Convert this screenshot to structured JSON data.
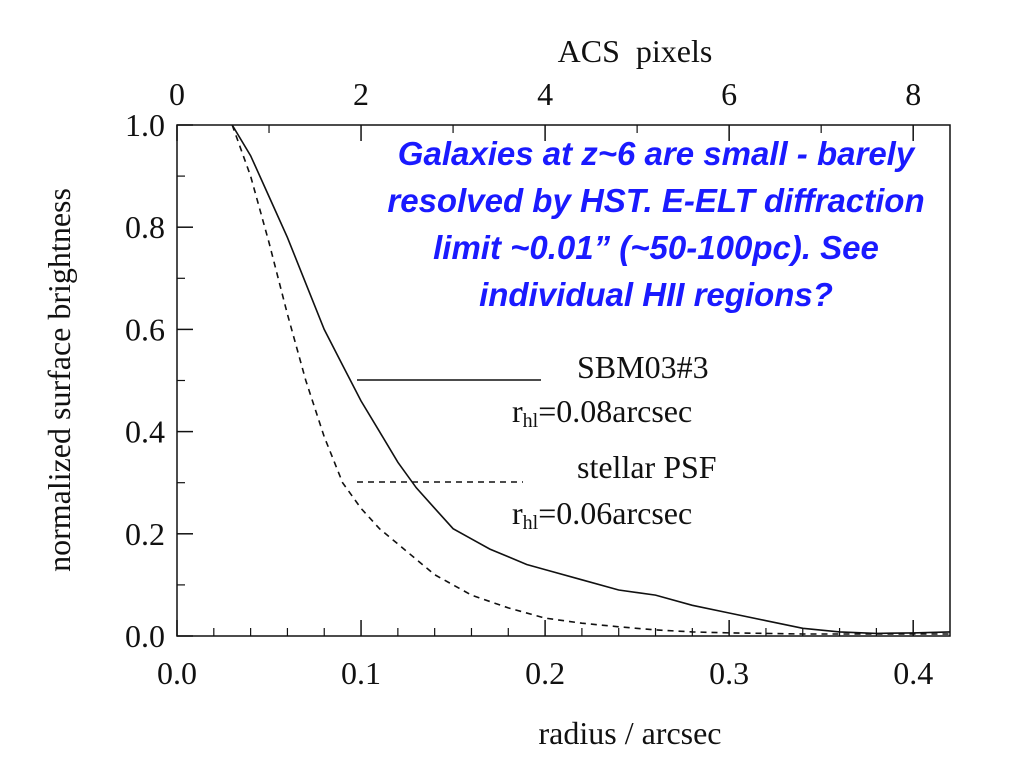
{
  "chart_data": {
    "type": "line",
    "xlabel": "radius / arcsec",
    "ylabel": "normalized surface brightness",
    "top_axis_label": "ACS  pixels",
    "xlim": [
      0.0,
      0.42
    ],
    "ylim": [
      0.0,
      1.0
    ],
    "x_ticks": [
      "0.0",
      "0.1",
      "0.2",
      "0.3",
      "0.4"
    ],
    "y_ticks": [
      "0.0",
      "0.2",
      "0.4",
      "0.6",
      "0.8",
      "1.0"
    ],
    "top_ticks": [
      "0",
      "2",
      "4",
      "6",
      "8"
    ],
    "grid": false,
    "legend_position": "center-right",
    "series": [
      {
        "name": "SBM03#3",
        "detail_prefix": "r",
        "detail_sub": "hl",
        "detail_suffix": "=0.08arcsec",
        "style": "solid",
        "x": [
          0.03,
          0.04,
          0.05,
          0.06,
          0.07,
          0.08,
          0.09,
          0.1,
          0.11,
          0.12,
          0.13,
          0.14,
          0.15,
          0.16,
          0.17,
          0.18,
          0.19,
          0.2,
          0.22,
          0.24,
          0.25,
          0.26,
          0.28,
          0.3,
          0.32,
          0.34,
          0.36,
          0.38,
          0.4,
          0.42
        ],
        "y": [
          1.0,
          0.94,
          0.86,
          0.78,
          0.69,
          0.6,
          0.53,
          0.46,
          0.4,
          0.34,
          0.29,
          0.25,
          0.21,
          0.19,
          0.17,
          0.155,
          0.14,
          0.13,
          0.11,
          0.09,
          0.085,
          0.08,
          0.06,
          0.045,
          0.03,
          0.015,
          0.008,
          0.005,
          0.006,
          0.008
        ]
      },
      {
        "name": "stellar PSF",
        "detail_prefix": "r",
        "detail_sub": "hl",
        "detail_suffix": "=0.06arcsec",
        "style": "dashed",
        "x": [
          0.03,
          0.04,
          0.05,
          0.06,
          0.07,
          0.08,
          0.09,
          0.1,
          0.11,
          0.12,
          0.13,
          0.14,
          0.15,
          0.16,
          0.18,
          0.2,
          0.22,
          0.24,
          0.26,
          0.28,
          0.3,
          0.32,
          0.34,
          0.36,
          0.38,
          0.4,
          0.42
        ],
        "y": [
          1.0,
          0.9,
          0.77,
          0.63,
          0.5,
          0.39,
          0.3,
          0.25,
          0.21,
          0.18,
          0.15,
          0.12,
          0.1,
          0.08,
          0.055,
          0.035,
          0.025,
          0.018,
          0.012,
          0.008,
          0.006,
          0.005,
          0.004,
          0.004,
          0.004,
          0.004,
          0.004
        ]
      }
    ]
  },
  "annotation": {
    "lines": [
      "Galaxies at z~6 are small - barely",
      "resolved by HST. E-ELT diffraction",
      "limit ~0.01” (~50-100pc). See",
      "individual HII regions?"
    ],
    "color": "#1a1aff"
  }
}
